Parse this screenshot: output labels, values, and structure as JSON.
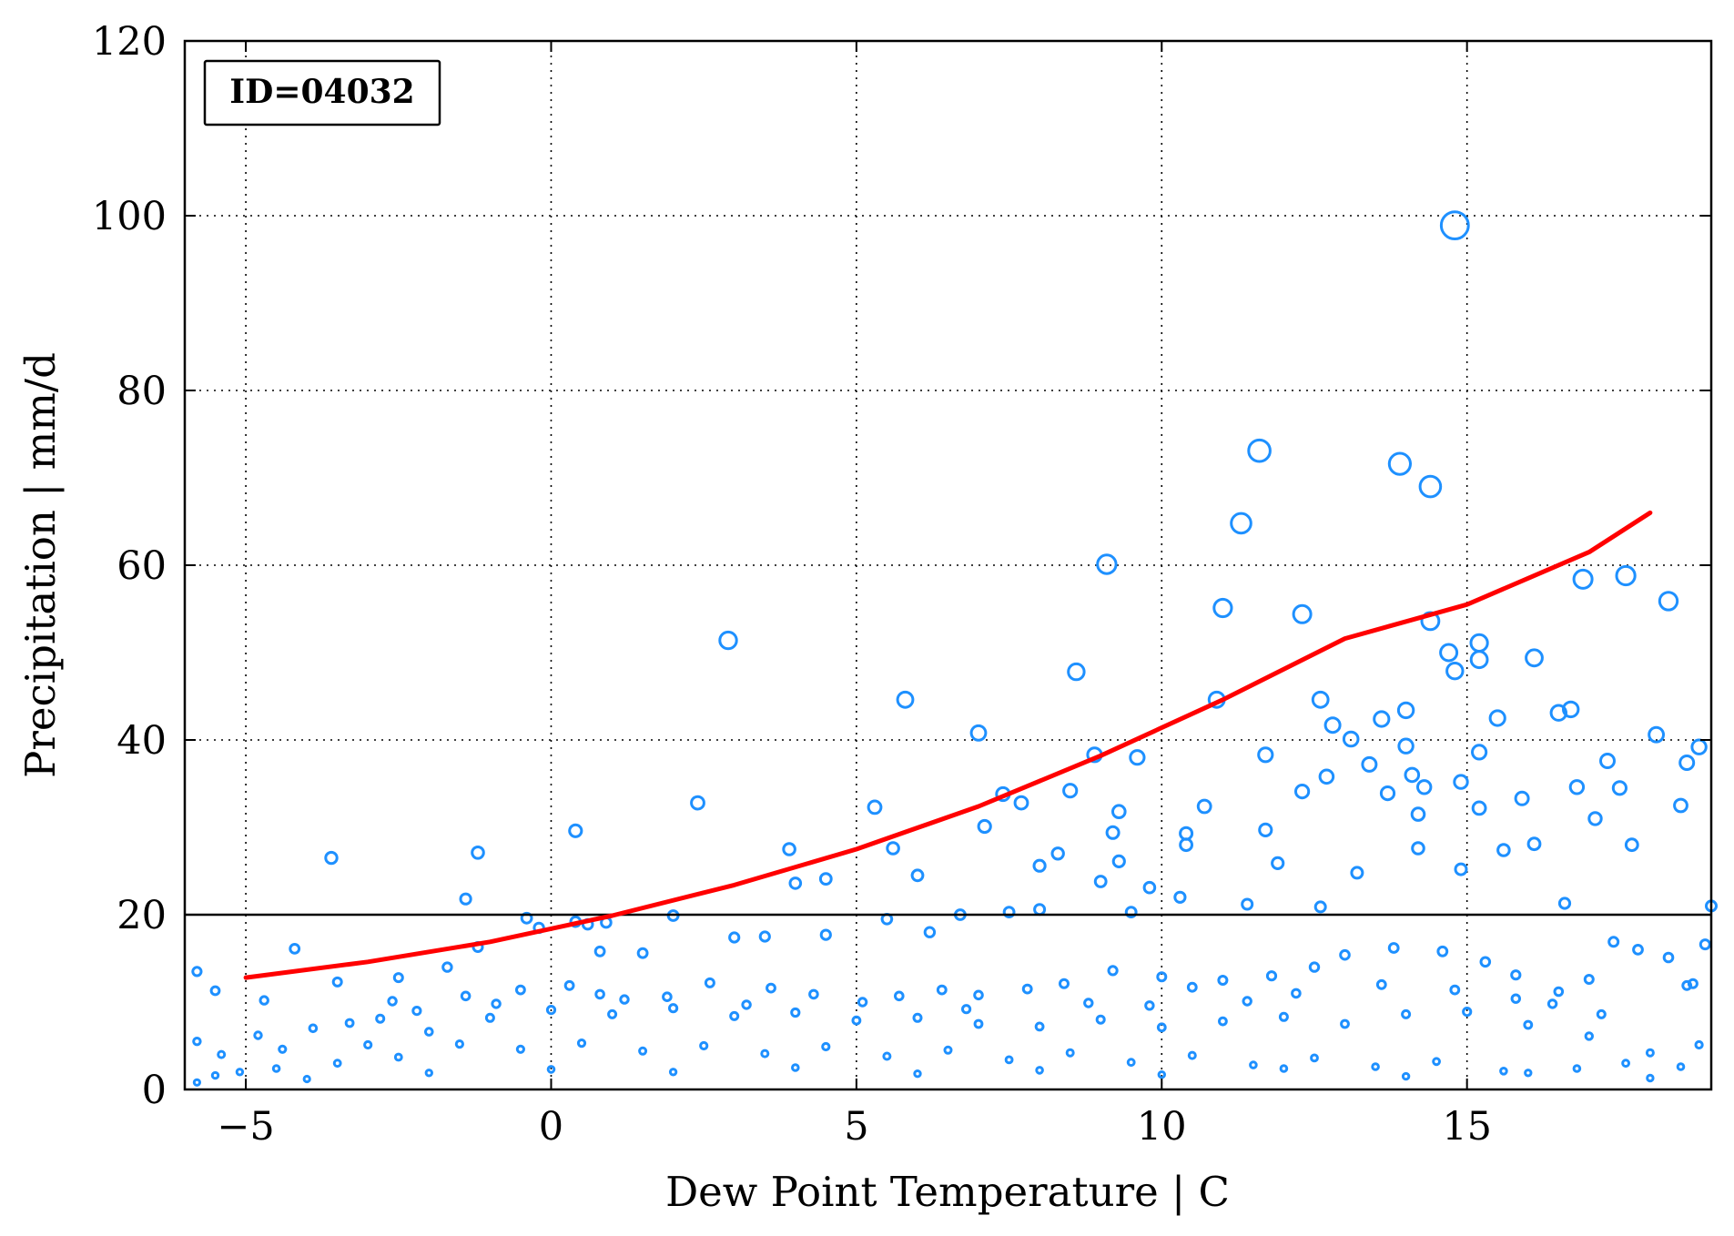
{
  "colors": {
    "points": "#1E90FF",
    "fit": "#FF0000",
    "threshold": "#000000",
    "axes": "#000000"
  },
  "chart_data": {
    "type": "scatter",
    "title": "",
    "xlabel": "Dew Point Temperature | C",
    "ylabel": "Precipitation | mm/d",
    "xlim": [
      -6,
      19
    ],
    "ylim": [
      0,
      120
    ],
    "xticks": [
      "−5",
      "0",
      "5",
      "10",
      "15"
    ],
    "yticks": [
      "0",
      "20",
      "40",
      "60",
      "80",
      "100",
      "120"
    ],
    "xtick_values": [
      -5,
      0,
      5,
      10,
      15
    ],
    "ytick_values": [
      0,
      20,
      40,
      60,
      80,
      100,
      120
    ],
    "grid": true,
    "annotation": "ID=04032",
    "annotation_location": "top-left",
    "threshold_line": 20,
    "series": [
      {
        "kind": "scatter",
        "marker": "open-circle",
        "marker_size_scales_with_value": true,
        "points": [
          [
            -5.8,
            13.5
          ],
          [
            -5.5,
            11.3
          ],
          [
            -3.6,
            26.5
          ],
          [
            -4.2,
            16.1
          ],
          [
            -1.4,
            21.8
          ],
          [
            -1.2,
            27.1
          ],
          [
            -1.2,
            16.3
          ],
          [
            -0.4,
            19.6
          ],
          [
            -0.2,
            18.5
          ],
          [
            0.4,
            29.6
          ],
          [
            0.4,
            19.2
          ],
          [
            0.6,
            18.9
          ],
          [
            0.9,
            19.1
          ],
          [
            2.0,
            19.9
          ],
          [
            2.4,
            32.8
          ],
          [
            2.9,
            51.4
          ],
          [
            3.5,
            17.5
          ],
          [
            3.9,
            27.5
          ],
          [
            4.0,
            23.6
          ],
          [
            4.5,
            24.1
          ],
          [
            5.3,
            32.3
          ],
          [
            5.6,
            27.6
          ],
          [
            5.8,
            44.6
          ],
          [
            6.0,
            24.5
          ],
          [
            7.0,
            40.8
          ],
          [
            7.1,
            30.1
          ],
          [
            7.4,
            33.8
          ],
          [
            7.7,
            32.8
          ],
          [
            8.0,
            25.6
          ],
          [
            8.3,
            27.0
          ],
          [
            8.5,
            34.2
          ],
          [
            8.6,
            47.8
          ],
          [
            8.9,
            38.3
          ],
          [
            9.1,
            60.1
          ],
          [
            9.2,
            29.4
          ],
          [
            9.3,
            31.8
          ],
          [
            9.3,
            26.1
          ],
          [
            9.6,
            38.0
          ],
          [
            10.4,
            28.0
          ],
          [
            10.4,
            29.3
          ],
          [
            10.7,
            32.4
          ],
          [
            10.9,
            44.6
          ],
          [
            11.0,
            55.1
          ],
          [
            11.3,
            64.8
          ],
          [
            11.6,
            73.1
          ],
          [
            11.7,
            38.3
          ],
          [
            11.7,
            29.7
          ],
          [
            12.3,
            54.4
          ],
          [
            12.3,
            34.1
          ],
          [
            12.6,
            44.6
          ],
          [
            12.7,
            35.8
          ],
          [
            12.8,
            41.7
          ],
          [
            13.1,
            40.1
          ],
          [
            13.4,
            37.2
          ],
          [
            13.6,
            42.4
          ],
          [
            13.7,
            33.9
          ],
          [
            13.9,
            71.6
          ],
          [
            14.0,
            43.4
          ],
          [
            14.0,
            39.3
          ],
          [
            14.1,
            36.0
          ],
          [
            14.2,
            31.5
          ],
          [
            14.3,
            34.6
          ],
          [
            14.4,
            69.0
          ],
          [
            14.4,
            53.6
          ],
          [
            14.7,
            50.0
          ],
          [
            14.8,
            98.9
          ],
          [
            14.8,
            47.9
          ],
          [
            14.9,
            35.2
          ],
          [
            15.2,
            51.1
          ],
          [
            15.2,
            49.2
          ],
          [
            15.2,
            38.6
          ],
          [
            15.2,
            32.2
          ],
          [
            15.5,
            42.5
          ],
          [
            15.9,
            33.3
          ],
          [
            16.1,
            49.4
          ],
          [
            16.5,
            43.1
          ],
          [
            16.7,
            43.5
          ],
          [
            16.9,
            58.4
          ],
          [
            16.8,
            34.6
          ],
          [
            17.1,
            31.0
          ],
          [
            17.3,
            37.6
          ],
          [
            17.5,
            34.5
          ],
          [
            17.6,
            58.8
          ],
          [
            17.7,
            28.0
          ],
          [
            18.1,
            40.6
          ],
          [
            18.3,
            55.9
          ],
          [
            18.6,
            37.4
          ],
          [
            18.8,
            39.2
          ],
          [
            18.5,
            32.5
          ],
          [
            19.0,
            21.0
          ],
          [
            16.6,
            21.3
          ],
          [
            16.1,
            28.1
          ],
          [
            15.6,
            27.4
          ],
          [
            14.9,
            25.2
          ],
          [
            14.2,
            27.6
          ],
          [
            13.2,
            24.8
          ],
          [
            12.6,
            20.9
          ],
          [
            11.9,
            25.9
          ],
          [
            11.4,
            21.2
          ],
          [
            10.3,
            22.0
          ],
          [
            9.8,
            23.1
          ],
          [
            9.5,
            20.3
          ],
          [
            9.0,
            23.8
          ],
          [
            8.0,
            20.6
          ],
          [
            7.5,
            20.3
          ],
          [
            6.7,
            20.0
          ],
          [
            6.2,
            18.0
          ],
          [
            5.5,
            19.5
          ],
          [
            4.5,
            17.7
          ],
          [
            3.0,
            17.4
          ],
          [
            1.5,
            15.6
          ],
          [
            0.8,
            15.8
          ],
          [
            -1.7,
            14.0
          ],
          [
            -2.5,
            12.8
          ],
          [
            -3.5,
            12.3
          ],
          [
            -4.7,
            10.2
          ],
          [
            17.4,
            16.9
          ],
          [
            17.8,
            16.0
          ],
          [
            18.3,
            15.1
          ],
          [
            18.7,
            12.1
          ],
          [
            18.9,
            16.6
          ],
          [
            18.6,
            11.9
          ],
          [
            17.0,
            12.6
          ],
          [
            16.5,
            11.2
          ],
          [
            15.8,
            13.1
          ],
          [
            15.3,
            14.6
          ],
          [
            14.6,
            15.8
          ],
          [
            13.8,
            16.2
          ],
          [
            13.0,
            15.4
          ],
          [
            12.5,
            14.0
          ],
          [
            11.8,
            13.0
          ],
          [
            11.0,
            12.5
          ],
          [
            10.5,
            11.7
          ],
          [
            10.0,
            12.9
          ],
          [
            9.2,
            13.6
          ],
          [
            8.4,
            12.1
          ],
          [
            7.8,
            11.5
          ],
          [
            7.0,
            10.8
          ],
          [
            6.4,
            11.4
          ],
          [
            5.7,
            10.7
          ],
          [
            5.1,
            10.0
          ],
          [
            4.3,
            10.9
          ],
          [
            3.6,
            11.6
          ],
          [
            2.6,
            12.2
          ],
          [
            1.9,
            10.6
          ],
          [
            1.2,
            10.3
          ],
          [
            0.3,
            11.9
          ],
          [
            -0.5,
            11.4
          ],
          [
            -1.4,
            10.7
          ],
          [
            -2.2,
            9.0
          ],
          [
            -2.8,
            8.1
          ],
          [
            -3.3,
            7.6
          ],
          [
            -3.9,
            7.0
          ],
          [
            -4.8,
            6.2
          ],
          [
            -5.4,
            4.0
          ],
          [
            -5.8,
            5.5
          ],
          [
            -5.1,
            2.0
          ],
          [
            -4.4,
            4.6
          ],
          [
            -3.0,
            5.1
          ],
          [
            -2.0,
            6.6
          ],
          [
            -1.0,
            8.2
          ],
          [
            0.0,
            9.1
          ],
          [
            1.0,
            8.6
          ],
          [
            2.0,
            9.3
          ],
          [
            3.0,
            8.4
          ],
          [
            4.0,
            8.8
          ],
          [
            5.0,
            7.9
          ],
          [
            6.0,
            8.2
          ],
          [
            7.0,
            7.5
          ],
          [
            8.0,
            7.2
          ],
          [
            9.0,
            8.0
          ],
          [
            10.0,
            7.1
          ],
          [
            11.0,
            7.8
          ],
          [
            12.0,
            8.3
          ],
          [
            13.0,
            7.5
          ],
          [
            14.0,
            8.6
          ],
          [
            15.0,
            8.9
          ],
          [
            16.0,
            7.4
          ],
          [
            17.0,
            6.1
          ],
          [
            18.0,
            4.2
          ],
          [
            18.8,
            5.1
          ],
          [
            18.5,
            2.6
          ],
          [
            17.6,
            3.0
          ],
          [
            16.8,
            2.4
          ],
          [
            15.6,
            2.1
          ],
          [
            14.5,
            3.2
          ],
          [
            13.5,
            2.6
          ],
          [
            12.5,
            3.6
          ],
          [
            11.5,
            2.8
          ],
          [
            10.5,
            3.9
          ],
          [
            9.5,
            3.1
          ],
          [
            8.5,
            4.2
          ],
          [
            7.5,
            3.4
          ],
          [
            6.5,
            4.5
          ],
          [
            5.5,
            3.8
          ],
          [
            4.5,
            4.9
          ],
          [
            3.5,
            4.1
          ],
          [
            2.5,
            5.0
          ],
          [
            1.5,
            4.4
          ],
          [
            0.5,
            5.3
          ],
          [
            -0.5,
            4.6
          ],
          [
            -1.5,
            5.2
          ],
          [
            -2.5,
            3.7
          ],
          [
            -3.5,
            3.0
          ],
          [
            -4.5,
            2.4
          ],
          [
            -5.5,
            1.6
          ],
          [
            -5.8,
            0.8
          ],
          [
            -4.0,
            1.2
          ],
          [
            -2.0,
            1.9
          ],
          [
            0.0,
            2.3
          ],
          [
            2.0,
            2.0
          ],
          [
            4.0,
            2.5
          ],
          [
            6.0,
            1.8
          ],
          [
            8.0,
            2.2
          ],
          [
            10.0,
            1.7
          ],
          [
            12.0,
            2.4
          ],
          [
            14.0,
            1.5
          ],
          [
            16.0,
            1.9
          ],
          [
            18.0,
            1.3
          ],
          [
            17.2,
            8.6
          ],
          [
            16.4,
            9.8
          ],
          [
            15.8,
            10.4
          ],
          [
            14.8,
            11.4
          ],
          [
            13.6,
            12.0
          ],
          [
            12.2,
            11.0
          ],
          [
            11.4,
            10.1
          ],
          [
            9.8,
            9.6
          ],
          [
            8.8,
            9.9
          ],
          [
            6.8,
            9.2
          ],
          [
            3.2,
            9.7
          ],
          [
            0.8,
            10.9
          ],
          [
            -0.9,
            9.8
          ],
          [
            -2.6,
            10.1
          ]
        ]
      },
      {
        "kind": "line",
        "x": [
          -5,
          -3,
          -1,
          1,
          3,
          5,
          7,
          9,
          11,
          13,
          15,
          17,
          18
        ],
        "y": [
          12.8,
          14.6,
          16.9,
          19.9,
          23.4,
          27.5,
          32.4,
          38.2,
          44.6,
          51.6,
          55.5,
          61.5,
          66.0
        ]
      },
      {
        "kind": "hline",
        "y": 20
      }
    ]
  }
}
